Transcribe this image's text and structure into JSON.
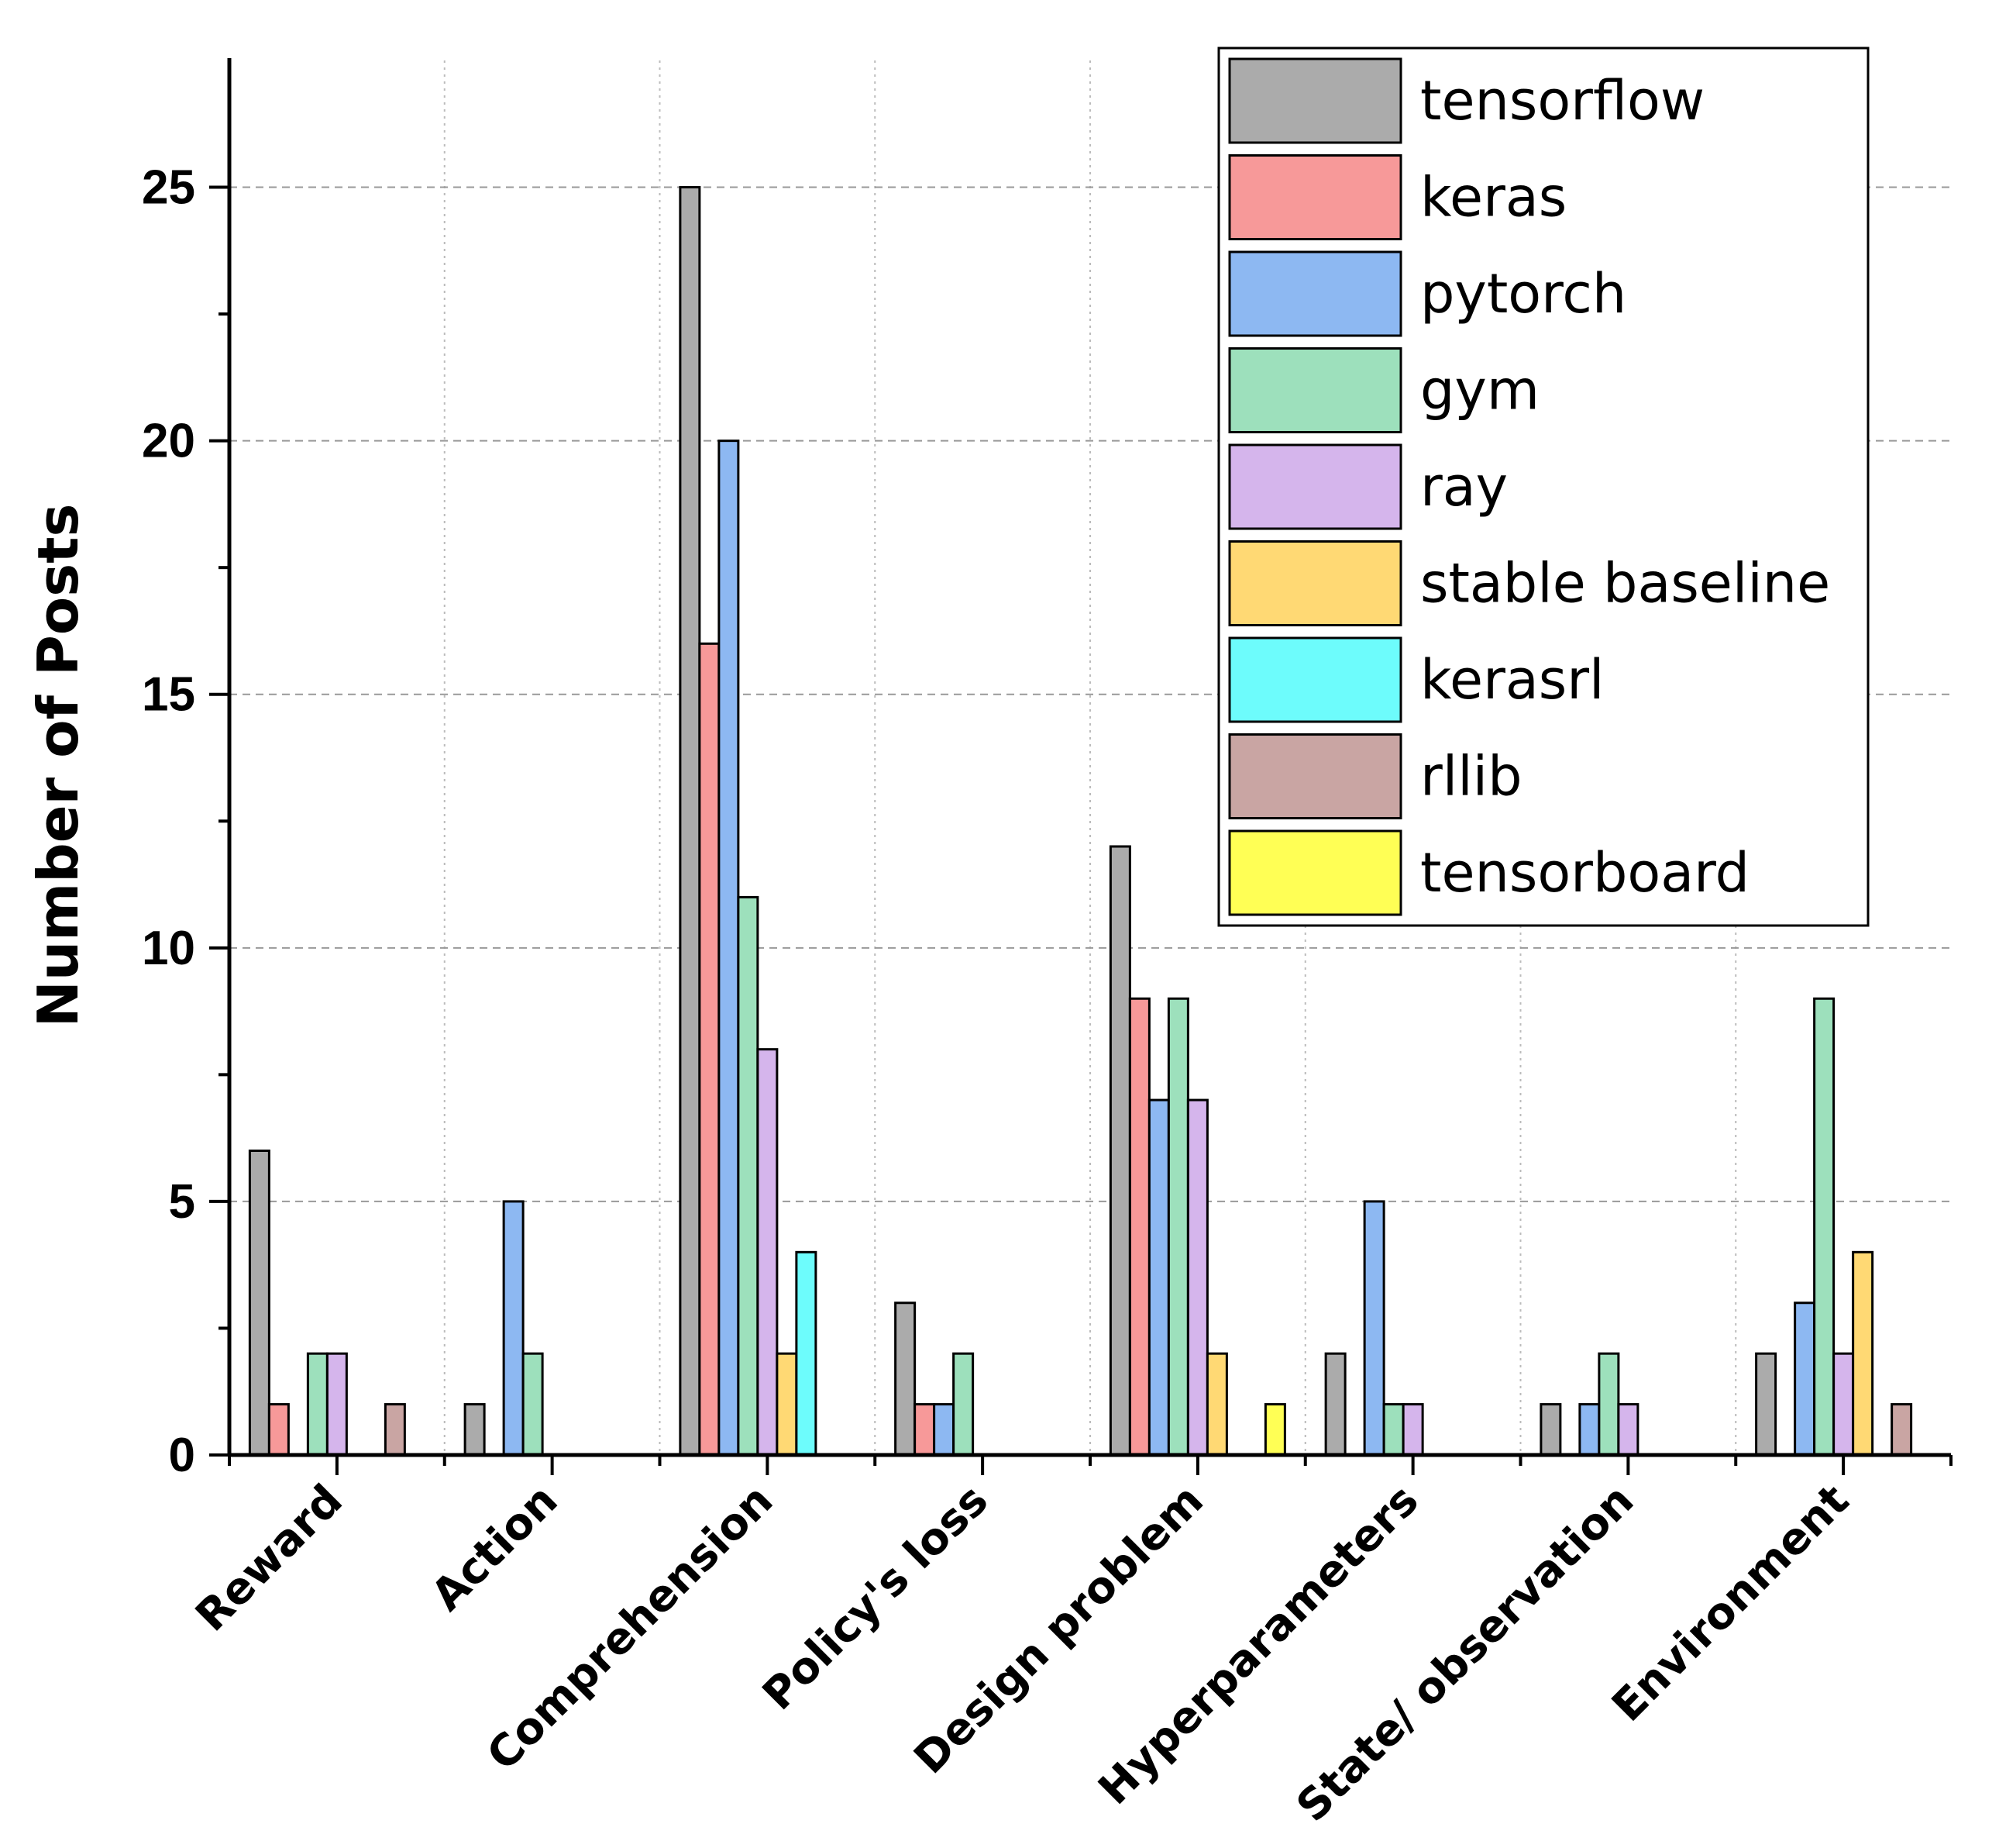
{
  "chart_data": {
    "type": "bar",
    "title": "",
    "xlabel": "",
    "ylabel": "Number of Posts",
    "ylim": [
      0,
      27.5
    ],
    "yticks": [
      0,
      5,
      10,
      15,
      20,
      25
    ],
    "grid": true,
    "legend_position": "top-right",
    "categories": [
      "Reward",
      "Action",
      "Comprehension",
      "Policy's loss",
      "Design problem",
      "Hyperparameters",
      "State/ observation",
      "Environment"
    ],
    "series": [
      {
        "name": "tensorflow",
        "color": "#ababab",
        "values": [
          6,
          1,
          25,
          3,
          12,
          2,
          1,
          2
        ]
      },
      {
        "name": "keras",
        "color": "#f79999",
        "values": [
          1,
          0,
          16,
          1,
          9,
          0,
          0,
          0
        ]
      },
      {
        "name": "pytorch",
        "color": "#8db8f2",
        "values": [
          0,
          5,
          20,
          1,
          7,
          5,
          1,
          3
        ]
      },
      {
        "name": "gym",
        "color": "#9de0bc",
        "values": [
          2,
          2,
          11,
          2,
          9,
          1,
          2,
          9
        ]
      },
      {
        "name": "ray",
        "color": "#d5b5ec",
        "values": [
          2,
          0,
          8,
          0,
          7,
          1,
          1,
          2
        ]
      },
      {
        "name": "stable baseline",
        "color": "#ffd974",
        "values": [
          0,
          0,
          2,
          0,
          2,
          0,
          0,
          4
        ]
      },
      {
        "name": "kerasrl",
        "color": "#6dfcfc",
        "values": [
          0,
          0,
          4,
          0,
          0,
          0,
          0,
          0
        ]
      },
      {
        "name": "rllib",
        "color": "#c9a5a3",
        "values": [
          1,
          0,
          0,
          0,
          0,
          0,
          0,
          1
        ]
      },
      {
        "name": "tensorboard",
        "color": "#ffff55",
        "values": [
          0,
          0,
          0,
          0,
          1,
          0,
          0,
          0
        ]
      }
    ]
  }
}
